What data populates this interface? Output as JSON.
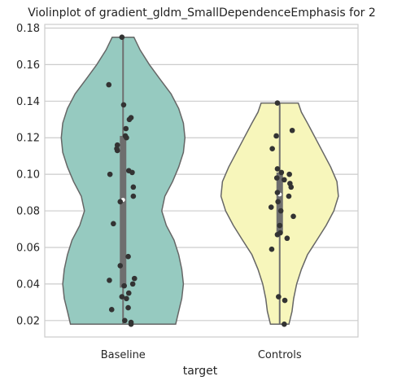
{
  "chart_data": {
    "type": "violin",
    "title": "Violinplot of gradient_gldm_SmallDependenceEmphasis for 2",
    "xlabel": "target",
    "ylabel": "",
    "ylim": [
      0.011,
      0.182
    ],
    "y_ticks": [
      "0.02",
      "0.04",
      "0.06",
      "0.08",
      "0.10",
      "0.12",
      "0.14",
      "0.16",
      "0.18"
    ],
    "grid": "horizontal",
    "categories": [
      "Baseline",
      "Controls"
    ],
    "colors": {
      "Baseline": "#96cac0",
      "Controls": "#f7f6bb",
      "edge": "#666666",
      "point": "#333333",
      "box": "#6e6e6e",
      "grid": "#cccccc"
    },
    "violins": [
      {
        "category": "Baseline",
        "min": 0.018,
        "max": 0.175,
        "q1": 0.038,
        "median": 0.086,
        "q3": 0.121,
        "density": [
          [
            0.018,
            0.34
          ],
          [
            0.025,
            0.36
          ],
          [
            0.032,
            0.38
          ],
          [
            0.04,
            0.39
          ],
          [
            0.048,
            0.38
          ],
          [
            0.056,
            0.36
          ],
          [
            0.064,
            0.33
          ],
          [
            0.072,
            0.28
          ],
          [
            0.08,
            0.25
          ],
          [
            0.088,
            0.27
          ],
          [
            0.096,
            0.32
          ],
          [
            0.104,
            0.36
          ],
          [
            0.112,
            0.39
          ],
          [
            0.12,
            0.4
          ],
          [
            0.128,
            0.39
          ],
          [
            0.136,
            0.36
          ],
          [
            0.144,
            0.31
          ],
          [
            0.152,
            0.24
          ],
          [
            0.16,
            0.17
          ],
          [
            0.168,
            0.11
          ],
          [
            0.175,
            0.07
          ]
        ],
        "points": [
          [
            0.175,
            -0.02
          ],
          [
            0.149,
            -0.25
          ],
          [
            0.138,
            0.01
          ],
          [
            0.131,
            0.14
          ],
          [
            0.13,
            0.11
          ],
          [
            0.125,
            0.05
          ],
          [
            0.121,
            0.04
          ],
          [
            0.12,
            0.06
          ],
          [
            0.116,
            -0.1
          ],
          [
            0.114,
            -0.11
          ],
          [
            0.113,
            -0.1
          ],
          [
            0.102,
            0.1
          ],
          [
            0.101,
            0.16
          ],
          [
            0.1,
            -0.23
          ],
          [
            0.093,
            0.18
          ],
          [
            0.088,
            0.18
          ],
          [
            0.085,
            -0.05
          ],
          [
            0.073,
            -0.17
          ],
          [
            0.055,
            0.09
          ],
          [
            0.05,
            -0.05
          ],
          [
            0.043,
            0.2
          ],
          [
            0.042,
            -0.24
          ],
          [
            0.04,
            0.17
          ],
          [
            0.039,
            0.02
          ],
          [
            0.035,
            0.1
          ],
          [
            0.033,
            -0.02
          ],
          [
            0.032,
            0.06
          ],
          [
            0.027,
            0.09
          ],
          [
            0.026,
            -0.2
          ],
          [
            0.02,
            0.03
          ],
          [
            0.019,
            0.14
          ],
          [
            0.018,
            0.14
          ]
        ]
      },
      {
        "category": "Controls",
        "min": 0.018,
        "max": 0.139,
        "q1": 0.068,
        "median": 0.089,
        "q3": 0.101,
        "density": [
          [
            0.018,
            0.06
          ],
          [
            0.025,
            0.08
          ],
          [
            0.032,
            0.09
          ],
          [
            0.04,
            0.11
          ],
          [
            0.048,
            0.14
          ],
          [
            0.056,
            0.18
          ],
          [
            0.064,
            0.24
          ],
          [
            0.072,
            0.3
          ],
          [
            0.08,
            0.35
          ],
          [
            0.088,
            0.38
          ],
          [
            0.096,
            0.37
          ],
          [
            0.104,
            0.33
          ],
          [
            0.112,
            0.28
          ],
          [
            0.12,
            0.23
          ],
          [
            0.128,
            0.18
          ],
          [
            0.134,
            0.14
          ],
          [
            0.139,
            0.12
          ]
        ],
        "points": [
          [
            0.139,
            -0.04
          ],
          [
            0.124,
            0.22
          ],
          [
            0.121,
            -0.06
          ],
          [
            0.114,
            -0.13
          ],
          [
            0.103,
            -0.04
          ],
          [
            0.101,
            0.03
          ],
          [
            0.1,
            0.17
          ],
          [
            0.098,
            -0.05
          ],
          [
            0.097,
            0.08
          ],
          [
            0.095,
            0.18
          ],
          [
            0.093,
            0.2
          ],
          [
            0.09,
            -0.04
          ],
          [
            0.088,
            0.16
          ],
          [
            0.085,
            -0.03
          ],
          [
            0.082,
            -0.15
          ],
          [
            0.08,
            0.02
          ],
          [
            0.077,
            0.24
          ],
          [
            0.072,
            0.0
          ],
          [
            0.068,
            0.01
          ],
          [
            0.067,
            -0.04
          ],
          [
            0.065,
            0.13
          ],
          [
            0.059,
            -0.14
          ],
          [
            0.033,
            -0.02
          ],
          [
            0.031,
            0.09
          ],
          [
            0.018,
            0.08
          ]
        ]
      }
    ]
  }
}
